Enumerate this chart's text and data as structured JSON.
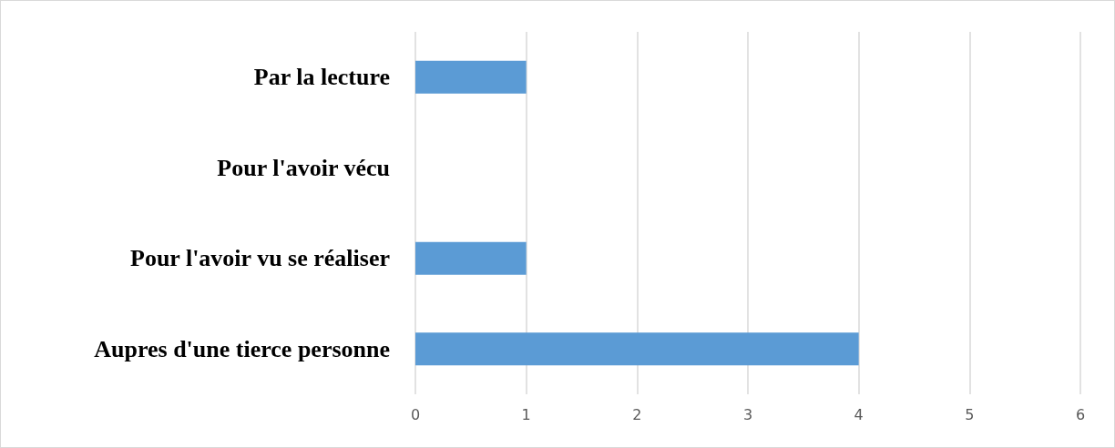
{
  "chart_data": {
    "type": "bar",
    "orientation": "horizontal",
    "categories": [
      "Par la lecture",
      "Pour l'avoir vécu",
      "Pour l'avoir vu se réaliser",
      "Aupres d'une tierce personne"
    ],
    "values": [
      1,
      0,
      1,
      4
    ],
    "color": "#5b9bd5",
    "xlim": [
      0,
      6
    ],
    "xticks": [
      0,
      1,
      2,
      3,
      4,
      5,
      6
    ],
    "grid": "x"
  }
}
